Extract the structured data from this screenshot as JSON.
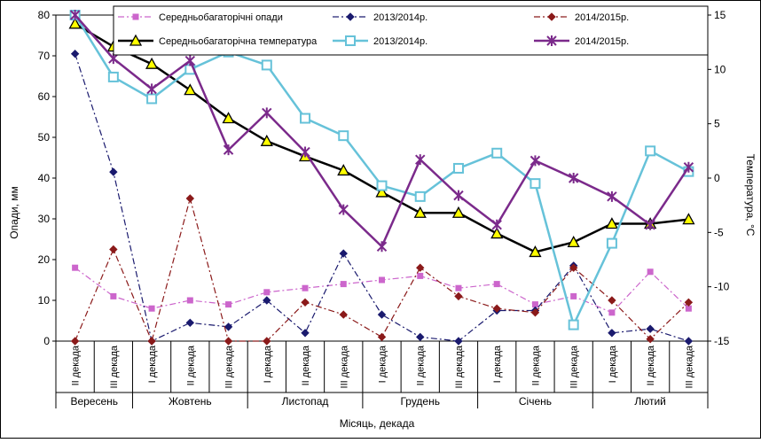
{
  "chart_data": {
    "type": "line",
    "title": "",
    "xlabel": "Місяць, декада",
    "ylabel_left": "Опади, мм",
    "ylabel_right": "Температура, °С",
    "ylim_left": [
      0,
      80
    ],
    "ylim_right": [
      -15,
      15
    ],
    "yticks_left": [
      0,
      10,
      20,
      30,
      40,
      50,
      60,
      70,
      80
    ],
    "yticks_right": [
      -15,
      -10,
      -5,
      0,
      5,
      10,
      15
    ],
    "categories": [
      "II декада",
      "III декада",
      "I декада",
      "II декада",
      "III декада",
      "I декада",
      "II декада",
      "III декада",
      "I декада",
      "II декада",
      "III декада",
      "I декада",
      "II декада",
      "III декада",
      "I декада",
      "II декада",
      "III декада"
    ],
    "months": [
      {
        "label": "Вересень",
        "count": 2
      },
      {
        "label": "Жовтень",
        "count": 3
      },
      {
        "label": "Листопад",
        "count": 3
      },
      {
        "label": "Грудень",
        "count": 3
      },
      {
        "label": "Січень",
        "count": 3
      },
      {
        "label": "Лютий",
        "count": 3
      }
    ],
    "legend_position": "top",
    "series": [
      {
        "name": "Середньобагаторічні опади",
        "axis": "left",
        "color": "#cc66cc",
        "dash": "7,3,2,3",
        "width": 1.2,
        "marker": "square",
        "marker_fill": "#cc66cc",
        "values": [
          18,
          11,
          8,
          10,
          9,
          12,
          13,
          14,
          15,
          16,
          13,
          14,
          9,
          11,
          7,
          17,
          8
        ]
      },
      {
        "name": "2013/2014р.",
        "axis": "left",
        "color": "#1a1a6e",
        "dash": "7,3,2,3",
        "width": 1.2,
        "marker": "diamond",
        "marker_fill": "#1a1a6e",
        "values": [
          70.5,
          41.5,
          0,
          4.5,
          3.5,
          10,
          2,
          21.5,
          6.5,
          1,
          0,
          7.5,
          7.5,
          18.5,
          2,
          3,
          0
        ]
      },
      {
        "name": "2014/2015р.",
        "axis": "left",
        "color": "#8b1a1a",
        "dash": "7,3,2,3",
        "width": 1.2,
        "marker": "diamond",
        "marker_fill": "#8b1a1a",
        "values": [
          0,
          22.5,
          0,
          35,
          0,
          0,
          9.5,
          6.5,
          1,
          18,
          11,
          8,
          7,
          18,
          10,
          0.5,
          9.5
        ]
      },
      {
        "name": "Середньобагаторічна температура",
        "axis": "right",
        "color": "#000000",
        "dash": "",
        "width": 2.5,
        "marker": "triangle",
        "marker_fill": "#ffff00",
        "values": [
          14.2,
          12.1,
          10.5,
          8.1,
          5.5,
          3.4,
          2.0,
          0.7,
          -1.3,
          -3.2,
          -3.2,
          -5.1,
          -6.8,
          -5.9,
          -4.2,
          -4.2,
          -3.8
        ]
      },
      {
        "name": "2013/2014р.",
        "axis": "right",
        "color": "#66c2d9",
        "dash": "",
        "width": 2.5,
        "marker": "square-open",
        "marker_fill": "#ffffff",
        "values": [
          15.0,
          9.3,
          7.3,
          10.0,
          11.6,
          10.4,
          5.5,
          3.9,
          -0.7,
          -1.7,
          0.9,
          2.3,
          -0.5,
          -13.5,
          -6.0,
          2.5,
          0.6
        ]
      },
      {
        "name": "2014/2015р.",
        "axis": "right",
        "color": "#7b2a8b",
        "dash": "",
        "width": 2.5,
        "marker": "star",
        "marker_fill": "#7b2a8b",
        "values": [
          15.0,
          11.0,
          8.2,
          10.8,
          2.6,
          6.0,
          2.4,
          -2.9,
          -6.3,
          1.7,
          -1.6,
          -4.3,
          1.6,
          0.0,
          -1.7,
          -4.3,
          1.0
        ]
      }
    ]
  }
}
